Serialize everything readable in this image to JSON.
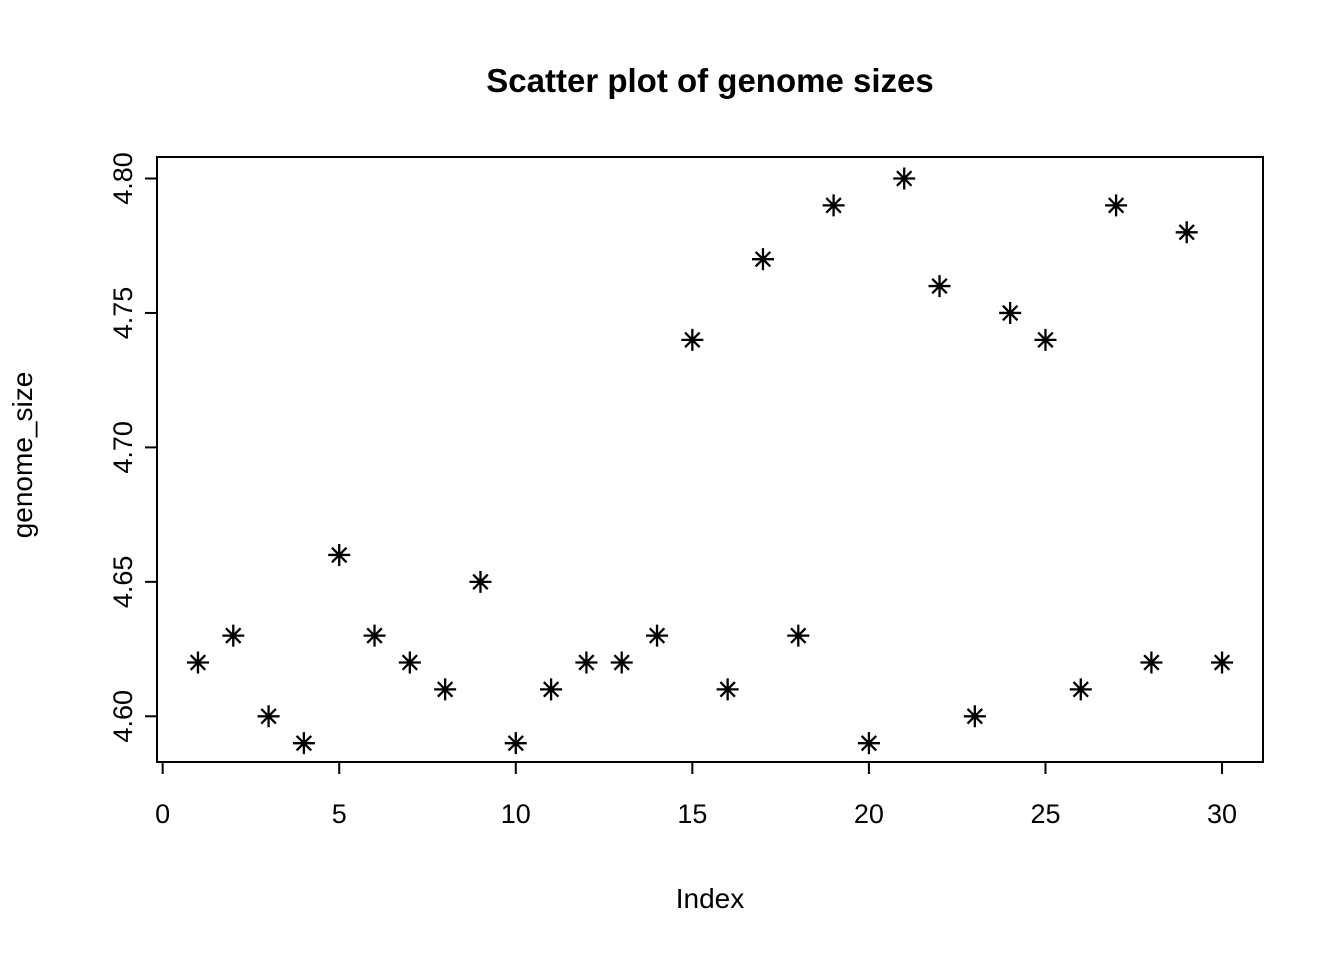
{
  "chart_data": {
    "type": "scatter",
    "title": "Scatter plot of genome sizes",
    "xlabel": "Index",
    "ylabel": "genome_size",
    "x": [
      1,
      2,
      3,
      4,
      5,
      6,
      7,
      8,
      9,
      10,
      11,
      12,
      13,
      14,
      15,
      16,
      17,
      18,
      19,
      20,
      21,
      22,
      23,
      24,
      25,
      26,
      27,
      28,
      29,
      30
    ],
    "y": [
      4.62,
      4.63,
      4.6,
      4.59,
      4.66,
      4.63,
      4.62,
      4.61,
      4.65,
      4.59,
      4.61,
      4.62,
      4.62,
      4.63,
      4.74,
      4.61,
      4.77,
      4.63,
      4.79,
      4.59,
      4.8,
      4.76,
      4.6,
      4.75,
      4.74,
      4.61,
      4.79,
      4.62,
      4.78,
      4.62
    ],
    "xlim": [
      -0.16,
      31.16
    ],
    "ylim": [
      4.583,
      4.808
    ],
    "xticks": [
      0,
      5,
      10,
      15,
      20,
      25,
      30
    ],
    "xtick_labels": [
      "0",
      "5",
      "10",
      "15",
      "20",
      "25",
      "30"
    ],
    "yticks": [
      4.6,
      4.65,
      4.7,
      4.75,
      4.8
    ],
    "ytick_labels": [
      "4.60",
      "4.65",
      "4.70",
      "4.75",
      "4.80"
    ],
    "grid": false,
    "marker": "asterisk-8-spoke",
    "marker_size": 22,
    "colors": {
      "points": "#000000",
      "axes": "#000000",
      "text": "#000000",
      "background": "#ffffff"
    }
  }
}
